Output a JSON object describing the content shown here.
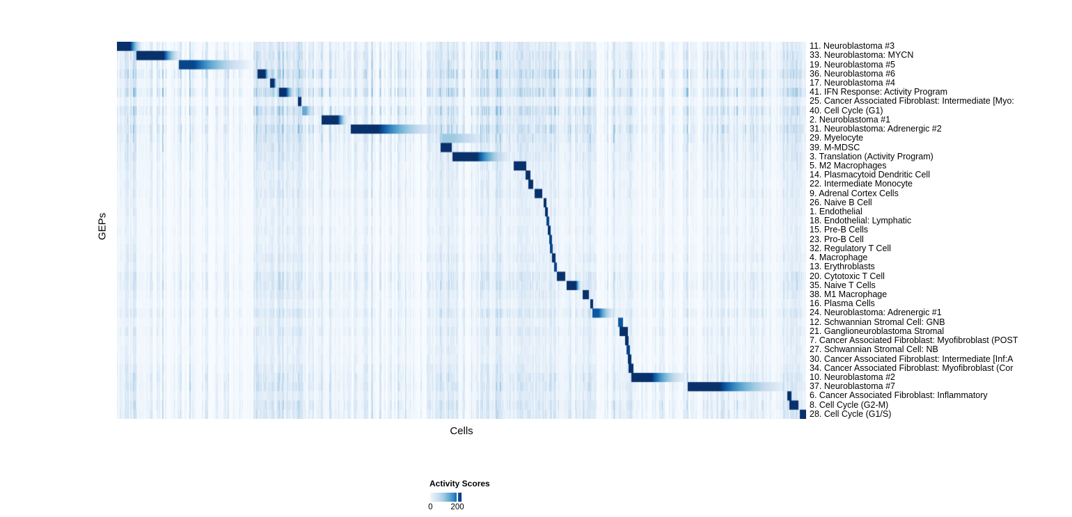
{
  "page": {
    "background": "#ffffff"
  },
  "chart_data": {
    "type": "heatmap",
    "xlabel": "Cells",
    "ylabel": "GEPs",
    "n_rows": 41,
    "colormap": {
      "name": "Blues",
      "positions": [
        0,
        0.13,
        0.3,
        0.45,
        0.6,
        0.72,
        0.82,
        0.92,
        1.0
      ],
      "colors": [
        "#f7fbff",
        "#deebf7",
        "#c6dbef",
        "#9ecae1",
        "#6baed6",
        "#4292c6",
        "#2171b5",
        "#08519c",
        "#08306b"
      ]
    },
    "colorbar": {
      "title": "Activity Scores",
      "tick_labels": [
        "0",
        "200"
      ],
      "tick_values": [
        0,
        200
      ],
      "tick_fraction": 0.87,
      "value_range": [
        0,
        230
      ]
    },
    "rows": [
      {
        "label": "11. Neuroblastoma #3",
        "noise": 0.45,
        "block": {
          "start": 0.0,
          "end": 0.038,
          "peak": 1.0,
          "fade": true,
          "hold": 0.5
        }
      },
      {
        "label": "33. Neuroblastoma: MYCN",
        "noise": 0.6,
        "block": {
          "start": 0.028,
          "end": 0.094,
          "peak": 1.0,
          "fade": true,
          "hold": 0.6
        }
      },
      {
        "label": "19. Neuroblastoma #5",
        "noise": 0.55,
        "block": {
          "start": 0.089,
          "end": 0.202,
          "peak": 0.95,
          "fade": true,
          "hold": 0.2
        }
      },
      {
        "label": "36. Neuroblastoma #6",
        "noise": 0.8,
        "block": {
          "start": 0.204,
          "end": 0.222,
          "peak": 1.0,
          "fade": true,
          "hold": 0.6
        }
      },
      {
        "label": "17. Neuroblastoma #4",
        "noise": 0.5,
        "block": {
          "start": 0.222,
          "end": 0.233,
          "peak": 1.0,
          "fade": true,
          "hold": 0.5
        }
      },
      {
        "label": "41. IFN Response: Activity Program",
        "noise": 0.85,
        "block": {
          "start": 0.235,
          "end": 0.26,
          "peak": 1.0,
          "fade": true,
          "hold": 0.4
        }
      },
      {
        "label": "25. Cancer Associated Fibroblast: Intermediate [Myo:",
        "noise": 0.35,
        "block": {
          "start": 0.262,
          "end": 0.267,
          "peak": 1.0,
          "fade": false,
          "hold": 0
        }
      },
      {
        "label": "40. Cell Cycle (G1)",
        "noise": 0.75,
        "block": {
          "start": 0.268,
          "end": 0.288,
          "peak": 0.62,
          "fade": true,
          "hold": 0.3
        }
      },
      {
        "label": "2. Neuroblastoma #1",
        "noise": 0.5,
        "block": {
          "start": 0.297,
          "end": 0.336,
          "peak": 1.0,
          "fade": true,
          "hold": 0.6
        }
      },
      {
        "label": "31. Neuroblastoma: Adrenergic #2",
        "noise": 0.75,
        "block": {
          "start": 0.339,
          "end": 0.474,
          "peak": 1.0,
          "fade": true,
          "hold": 0.3
        }
      },
      {
        "label": "29. Myelocyte",
        "noise": 0.6,
        "block": {
          "start": 0.472,
          "end": 0.555,
          "peak": 0.45,
          "fade": true,
          "hold": 0.2
        }
      },
      {
        "label": "39. M-MDSC",
        "noise": 0.5,
        "block": {
          "start": 0.47,
          "end": 0.486,
          "peak": 1.0,
          "fade": false,
          "hold": 0
        }
      },
      {
        "label": "3. Translation (Activity Program)",
        "noise": 0.45,
        "block": {
          "start": 0.487,
          "end": 0.576,
          "peak": 1.0,
          "fade": true,
          "hold": 0.4
        }
      },
      {
        "label": "5. M2 Macrophages",
        "noise": 0.4,
        "block": {
          "start": 0.576,
          "end": 0.594,
          "peak": 1.0,
          "fade": false,
          "hold": 0
        }
      },
      {
        "label": "14. Plasmacytoid Dendritic Cell",
        "noise": 0.35,
        "block": {
          "start": 0.593,
          "end": 0.6,
          "peak": 1.0,
          "fade": false,
          "hold": 0
        }
      },
      {
        "label": "22. Intermediate Monocyte",
        "noise": 0.35,
        "block": {
          "start": 0.597,
          "end": 0.604,
          "peak": 1.0,
          "fade": false,
          "hold": 0
        }
      },
      {
        "label": "9. Adrenal Cortex Cells",
        "noise": 0.4,
        "block": {
          "start": 0.606,
          "end": 0.617,
          "peak": 1.0,
          "fade": false,
          "hold": 0
        }
      },
      {
        "label": "26. Naive B Cell",
        "noise": 0.3,
        "block": {
          "start": 0.619,
          "end": 0.623,
          "peak": 1.0,
          "fade": false,
          "hold": 0
        }
      },
      {
        "label": "1. Endothelial",
        "noise": 0.3,
        "block": {
          "start": 0.621,
          "end": 0.625,
          "peak": 1.0,
          "fade": false,
          "hold": 0
        }
      },
      {
        "label": "18. Endothelial: Lymphatic",
        "noise": 0.25,
        "block": {
          "start": 0.623,
          "end": 0.627,
          "peak": 0.95,
          "fade": false,
          "hold": 0
        }
      },
      {
        "label": "15. Pre-B Cells",
        "noise": 0.3,
        "block": {
          "start": 0.625,
          "end": 0.629,
          "peak": 1.0,
          "fade": false,
          "hold": 0
        }
      },
      {
        "label": "23. Pro-B Cell",
        "noise": 0.25,
        "block": {
          "start": 0.627,
          "end": 0.631,
          "peak": 0.95,
          "fade": false,
          "hold": 0
        }
      },
      {
        "label": "32. Regulatory T Cell",
        "noise": 0.3,
        "block": {
          "start": 0.628,
          "end": 0.632,
          "peak": 0.95,
          "fade": false,
          "hold": 0
        }
      },
      {
        "label": "4. Macrophage",
        "noise": 0.4,
        "block": {
          "start": 0.631,
          "end": 0.637,
          "peak": 1.0,
          "fade": false,
          "hold": 0
        }
      },
      {
        "label": "13. Erythroblasts",
        "noise": 0.3,
        "block": {
          "start": 0.634,
          "end": 0.639,
          "peak": 0.95,
          "fade": false,
          "hold": 0
        }
      },
      {
        "label": "20. Cytotoxic T Cell",
        "noise": 0.5,
        "block": {
          "start": 0.639,
          "end": 0.651,
          "peak": 1.0,
          "fade": false,
          "hold": 0
        }
      },
      {
        "label": "35. Naive T Cells",
        "noise": 0.5,
        "block": {
          "start": 0.653,
          "end": 0.675,
          "peak": 1.0,
          "fade": true,
          "hold": 0.6
        }
      },
      {
        "label": "38. M1 Macrophage",
        "noise": 0.4,
        "block": {
          "start": 0.676,
          "end": 0.685,
          "peak": 1.0,
          "fade": false,
          "hold": 0
        }
      },
      {
        "label": "16. Plasma Cells",
        "noise": 0.3,
        "block": {
          "start": 0.687,
          "end": 0.691,
          "peak": 1.0,
          "fade": false,
          "hold": 0
        }
      },
      {
        "label": "24. Neuroblastoma: Adrenergic #1",
        "noise": 0.5,
        "block": {
          "start": 0.69,
          "end": 0.726,
          "peak": 0.9,
          "fade": true,
          "hold": 0.25
        }
      },
      {
        "label": "12. Schwannian Stromal Cell: GNB",
        "noise": 0.3,
        "block": {
          "start": 0.727,
          "end": 0.735,
          "peak": 0.9,
          "fade": false,
          "hold": 0
        }
      },
      {
        "label": "21. Ganglioneuroblastoma Stromal",
        "noise": 0.4,
        "block": {
          "start": 0.73,
          "end": 0.742,
          "peak": 1.0,
          "fade": false,
          "hold": 0
        }
      },
      {
        "label": "7. Cancer Associated Fibroblast: Myofibroblast (POST",
        "noise": 0.3,
        "block": {
          "start": 0.738,
          "end": 0.743,
          "peak": 1.0,
          "fade": false,
          "hold": 0
        }
      },
      {
        "label": "27. Schwannian Stromal Cell: NB",
        "noise": 0.3,
        "block": {
          "start": 0.74,
          "end": 0.745,
          "peak": 0.95,
          "fade": false,
          "hold": 0
        }
      },
      {
        "label": "30. Cancer Associated Fibroblast: Intermediate [Inf:A",
        "noise": 0.3,
        "block": {
          "start": 0.742,
          "end": 0.747,
          "peak": 1.0,
          "fade": false,
          "hold": 0
        }
      },
      {
        "label": "34. Cancer Associated Fibroblast: Myofibroblast (Cor",
        "noise": 0.4,
        "block": {
          "start": 0.743,
          "end": 0.75,
          "peak": 1.0,
          "fade": false,
          "hold": 0
        }
      },
      {
        "label": "10. Neuroblastoma #2",
        "noise": 0.5,
        "block": {
          "start": 0.747,
          "end": 0.831,
          "peak": 1.0,
          "fade": true,
          "hold": 0.35
        }
      },
      {
        "label": "37. Neuroblastoma #7",
        "noise": 0.55,
        "block": {
          "start": 0.829,
          "end": 0.983,
          "peak": 1.0,
          "fade": true,
          "hold": 0.3
        }
      },
      {
        "label": "6. Cancer Associated Fibroblast: Inflammatory",
        "noise": 0.4,
        "block": {
          "start": 0.973,
          "end": 0.979,
          "peak": 1.0,
          "fade": false,
          "hold": 0
        }
      },
      {
        "label": "8. Cell Cycle (G2-M)",
        "noise": 0.55,
        "block": {
          "start": 0.976,
          "end": 0.989,
          "peak": 1.0,
          "fade": false,
          "hold": 0
        }
      },
      {
        "label": "28. Cell Cycle (G1/S)",
        "noise": 0.5,
        "block": {
          "start": 0.991,
          "end": 1.0,
          "peak": 1.0,
          "fade": false,
          "hold": 0
        }
      }
    ],
    "hot_bands": [
      {
        "start": 0.0,
        "end": 0.04,
        "strength": 0.1
      },
      {
        "start": 0.2,
        "end": 0.232,
        "strength": 0.18
      },
      {
        "start": 0.234,
        "end": 0.27,
        "strength": 0.22
      },
      {
        "start": 0.294,
        "end": 0.34,
        "strength": 0.1
      },
      {
        "start": 0.462,
        "end": 0.495,
        "strength": 0.25
      },
      {
        "start": 0.53,
        "end": 0.62,
        "strength": 0.18
      },
      {
        "start": 0.622,
        "end": 0.662,
        "strength": 0.15
      },
      {
        "start": 0.668,
        "end": 0.692,
        "strength": 0.18
      },
      {
        "start": 0.718,
        "end": 0.757,
        "strength": 0.15
      },
      {
        "start": 0.86,
        "end": 0.95,
        "strength": 0.1
      },
      {
        "start": 0.968,
        "end": 1.0,
        "strength": 0.22
      }
    ],
    "stripes": [
      {
        "x": 0.205,
        "strength": 0.55
      },
      {
        "x": 0.239,
        "strength": 0.6
      },
      {
        "x": 0.263,
        "strength": 0.7
      },
      {
        "x": 0.268,
        "strength": 0.5
      },
      {
        "x": 0.469,
        "strength": 0.65
      },
      {
        "x": 0.493,
        "strength": 0.6
      },
      {
        "x": 0.538,
        "strength": 0.6
      },
      {
        "x": 0.576,
        "strength": 0.4
      },
      {
        "x": 0.599,
        "strength": 0.55
      },
      {
        "x": 0.627,
        "strength": 0.4
      },
      {
        "x": 0.677,
        "strength": 0.65
      },
      {
        "x": 0.72,
        "strength": 0.4
      },
      {
        "x": 0.937,
        "strength": 0.45
      },
      {
        "x": 0.973,
        "strength": 0.6
      },
      {
        "x": 0.99,
        "strength": 0.5
      }
    ]
  }
}
